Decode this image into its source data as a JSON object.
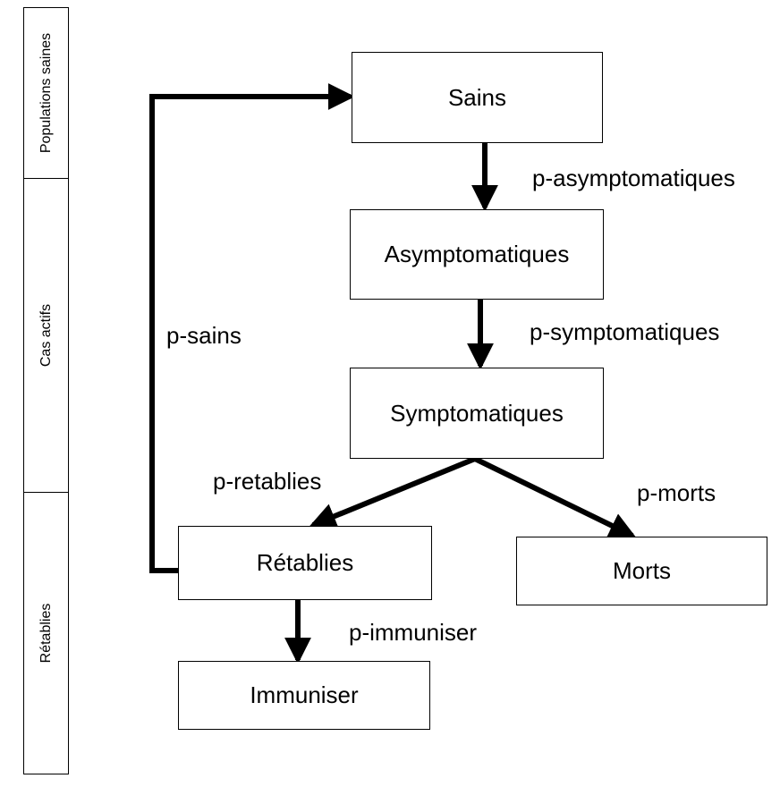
{
  "swimlanes": {
    "populations_saines": "Populations saines",
    "cas_actifs": "Cas actifs",
    "retablies": "Rétablies"
  },
  "nodes": {
    "sains": "Sains",
    "asymptomatiques": "Asymptomatiques",
    "symptomatiques": "Symptomatiques",
    "retablies": "Rétablies",
    "morts": "Morts",
    "immuniser": "Immuniser"
  },
  "edges": {
    "p_asymptomatiques": "p-asymptomatiques",
    "p_symptomatiques": "p-symptomatiques",
    "p_retablies": "p-retablies",
    "p_morts": "p-morts",
    "p_immuniser": "p-immuniser",
    "p_sains": "p-sains"
  }
}
